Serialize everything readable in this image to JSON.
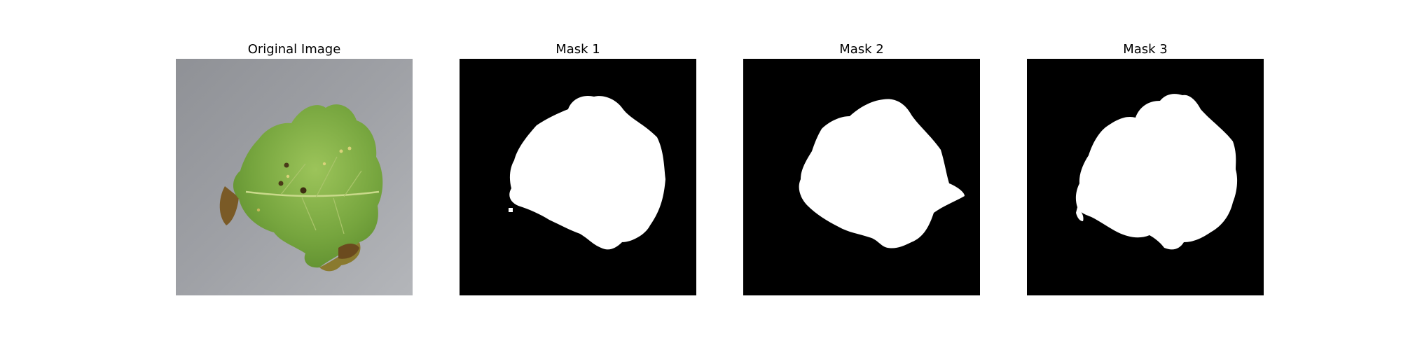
{
  "panels": [
    {
      "title": "Original Image"
    },
    {
      "title": "Mask 1"
    },
    {
      "title": "Mask 2"
    },
    {
      "title": "Mask 3"
    }
  ],
  "colors": {
    "background": "#c0c2c7",
    "leaf": "#6e9a3a",
    "mask_bg": "#000000",
    "mask_fg": "#ffffff"
  }
}
